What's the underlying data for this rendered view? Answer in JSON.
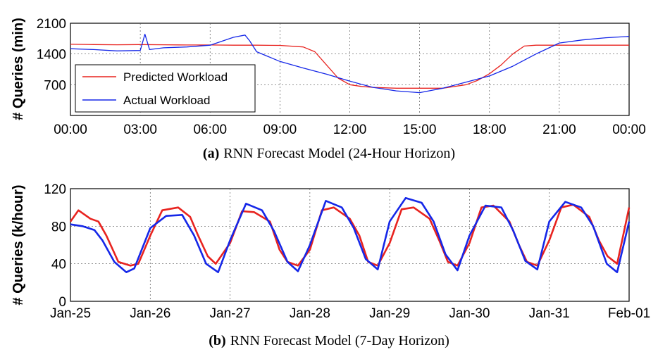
{
  "chart_data": [
    {
      "type": "line",
      "caption_tag": "(a)",
      "caption": "RNN Forecast Model (24-Hour Horizon)",
      "ylabel": "# Queries (min)",
      "xlabel": "",
      "x_ticks": [
        "00:00",
        "03:00",
        "06:00",
        "09:00",
        "12:00",
        "15:00",
        "18:00",
        "21:00",
        "00:00"
      ],
      "y_ticks": [
        700,
        1400,
        2100
      ],
      "xlim": [
        0,
        24
      ],
      "ylim": [
        0,
        2100
      ],
      "grid": true,
      "legend_position": "lower-left",
      "series": [
        {
          "name": "Predicted Workload",
          "color": "#e8231f",
          "x": [
            0,
            1,
            2,
            3,
            4,
            5,
            6,
            7,
            8,
            9,
            10,
            10.5,
            11,
            11.5,
            12,
            12.5,
            13,
            14,
            15,
            16,
            17,
            17.5,
            18,
            18.5,
            19,
            19.5,
            20,
            21,
            22,
            23,
            24
          ],
          "y": [
            1620,
            1615,
            1610,
            1615,
            1610,
            1605,
            1605,
            1600,
            1600,
            1595,
            1560,
            1450,
            1150,
            850,
            700,
            660,
            640,
            620,
            620,
            620,
            700,
            800,
            950,
            1150,
            1400,
            1580,
            1600,
            1600,
            1600,
            1600,
            1600
          ]
        },
        {
          "name": "Actual Workload",
          "color": "#1527e8",
          "x": [
            0,
            1,
            2,
            3,
            3.2,
            3.4,
            4,
            5,
            6,
            7,
            7.5,
            7.7,
            8,
            9,
            10,
            11,
            12,
            13,
            14,
            15,
            16,
            17,
            18,
            19,
            20,
            21,
            22,
            23,
            24
          ],
          "y": [
            1520,
            1500,
            1470,
            1480,
            1850,
            1500,
            1540,
            1560,
            1600,
            1780,
            1830,
            1700,
            1450,
            1230,
            1080,
            940,
            780,
            640,
            560,
            520,
            620,
            760,
            900,
            1120,
            1400,
            1650,
            1720,
            1770,
            1800
          ]
        }
      ]
    },
    {
      "type": "line",
      "caption_tag": "(b)",
      "caption": "RNN Forecast Model (7-Day Horizon)",
      "ylabel": "# Queries (k/hour)",
      "xlabel": "",
      "x_ticks": [
        "Jan-25",
        "Jan-26",
        "Jan-27",
        "Jan-28",
        "Jan-29",
        "Jan-30",
        "Jan-31",
        "Feb-01"
      ],
      "y_ticks": [
        0,
        40,
        80,
        120
      ],
      "xlim": [
        "Jan-25",
        "Feb-01"
      ],
      "ylim": [
        0,
        120
      ],
      "grid": true,
      "legend_position": "none",
      "series": [
        {
          "color": "#e8231f",
          "x": [
            0,
            0.1,
            0.25,
            0.35,
            0.45,
            0.6,
            0.75,
            0.85,
            1.0,
            1.15,
            1.35,
            1.5,
            1.6,
            1.72,
            1.82,
            2.0,
            2.15,
            2.3,
            2.5,
            2.62,
            2.72,
            2.85,
            3.0,
            3.15,
            3.3,
            3.5,
            3.62,
            3.73,
            3.85,
            4.0,
            4.15,
            4.3,
            4.5,
            4.62,
            4.73,
            4.85,
            5.0,
            5.15,
            5.3,
            5.5,
            5.62,
            5.72,
            5.85,
            6.0,
            6.15,
            6.3,
            6.5,
            6.62,
            6.73,
            6.85,
            7.0
          ],
          "y": [
            85,
            97,
            88,
            85,
            70,
            42,
            38,
            40,
            70,
            97,
            100,
            90,
            70,
            48,
            40,
            62,
            96,
            95,
            85,
            55,
            42,
            38,
            55,
            97,
            100,
            88,
            70,
            42,
            38,
            62,
            98,
            100,
            88,
            65,
            42,
            38,
            62,
            100,
            102,
            85,
            60,
            42,
            38,
            65,
            100,
            103,
            90,
            65,
            48,
            40,
            100
          ]
        },
        {
          "color": "#1527e8",
          "x": [
            0,
            0.15,
            0.3,
            0.4,
            0.55,
            0.7,
            0.8,
            1.0,
            1.2,
            1.4,
            1.55,
            1.7,
            1.85,
            2.0,
            2.2,
            2.4,
            2.55,
            2.72,
            2.85,
            3.0,
            3.2,
            3.4,
            3.55,
            3.7,
            3.85,
            4.0,
            4.2,
            4.4,
            4.55,
            4.7,
            4.85,
            5.0,
            5.2,
            5.4,
            5.55,
            5.7,
            5.85,
            6.0,
            6.2,
            6.4,
            6.55,
            6.72,
            6.85,
            7.0
          ],
          "y": [
            82,
            80,
            76,
            65,
            42,
            31,
            35,
            78,
            91,
            92,
            70,
            40,
            31,
            65,
            104,
            97,
            75,
            42,
            32,
            60,
            107,
            100,
            78,
            45,
            34,
            85,
            110,
            105,
            85,
            50,
            33,
            70,
            102,
            100,
            75,
            43,
            34,
            85,
            106,
            100,
            80,
            40,
            31,
            85
          ]
        }
      ]
    }
  ]
}
